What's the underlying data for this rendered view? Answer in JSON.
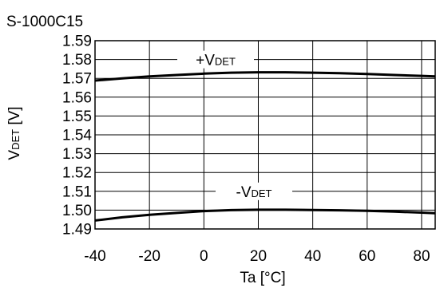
{
  "chart_data": {
    "type": "line",
    "title": "S-1000C15",
    "xlabel": "Ta [°C]",
    "ylabel": {
      "main": "V",
      "sub": "DET",
      "unit": " [V]"
    },
    "xlim": [
      -40,
      85
    ],
    "ylim": [
      1.49,
      1.59
    ],
    "xticks": [
      -40,
      -20,
      0,
      20,
      40,
      60,
      80
    ],
    "yticks": [
      1.59,
      1.58,
      1.57,
      1.56,
      1.55,
      1.54,
      1.53,
      1.52,
      1.51,
      1.5,
      1.49
    ],
    "ytick_labels": [
      "1.59",
      "1.58",
      "1.57",
      "1.56",
      "1.55",
      "1.54",
      "1.53",
      "1.52",
      "1.51",
      "1.50",
      "1.49"
    ],
    "grid": true,
    "series": [
      {
        "label": {
          "main": "+V",
          "sub": "DET"
        },
        "x": [
          -40,
          -30,
          -20,
          -10,
          0,
          10,
          20,
          30,
          40,
          50,
          60,
          70,
          80,
          85
        ],
        "y": [
          1.5688,
          1.57,
          1.571,
          1.5718,
          1.5725,
          1.573,
          1.5732,
          1.5732,
          1.573,
          1.5727,
          1.5723,
          1.5718,
          1.5713,
          1.571
        ],
        "color": "#000000"
      },
      {
        "label": {
          "main": "-V",
          "sub": "DET"
        },
        "x": [
          -40,
          -30,
          -20,
          -10,
          0,
          10,
          20,
          30,
          40,
          50,
          60,
          70,
          80,
          85
        ],
        "y": [
          1.4945,
          1.4962,
          1.4975,
          1.4985,
          1.4995,
          1.5,
          1.5002,
          1.5002,
          1.5001,
          1.4999,
          1.4996,
          1.4992,
          1.4987,
          1.4984
        ],
        "color": "#000000"
      }
    ]
  }
}
